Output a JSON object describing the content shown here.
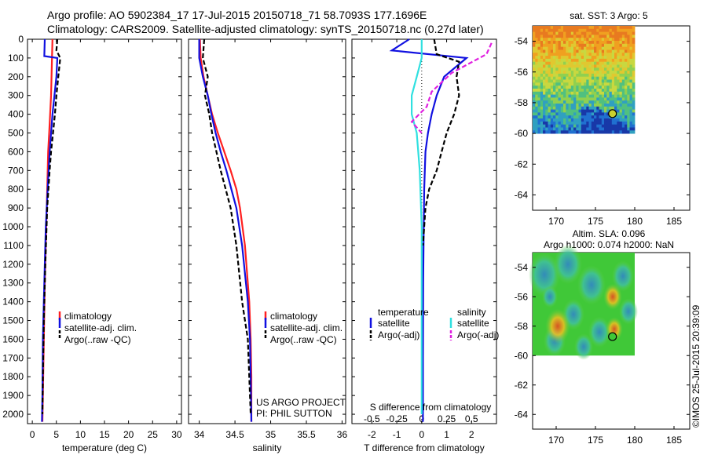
{
  "title": {
    "line1": "Argo profile: AO 5902384_17 17-Jul-2015 20150718_71 58.7093S 177.1696E",
    "line2": "Climatology: CARS2009. Satellite-adjusted climatology: synTS_20150718.nc (0.27d later)"
  },
  "colors": {
    "climatology": "#ff2020",
    "satellite": "#1010e0",
    "argo": "#000000",
    "s_satellite": "#30e0e0",
    "s_argo": "#e020e0"
  },
  "chart_data": [
    {
      "type": "line",
      "panel": "temperature",
      "xlabel": "temperature (deg C)",
      "ylabel": "",
      "xlim": [
        -1,
        31
      ],
      "ylim": [
        2050,
        0
      ],
      "y_inverted": true,
      "xticks": [
        0,
        5,
        10,
        15,
        20,
        25,
        30
      ],
      "yticks": [
        0,
        100,
        200,
        300,
        400,
        500,
        600,
        700,
        800,
        900,
        1000,
        1100,
        1200,
        1300,
        1400,
        1500,
        1600,
        1700,
        1800,
        1900,
        2000
      ],
      "legend": [
        "climatology",
        "satellite-adj. clim.",
        "Argo(..raw -QC)"
      ],
      "series": [
        {
          "name": "climatology",
          "style": "solid",
          "color": "#ff2020",
          "x": [
            4.2,
            4.1,
            4.0,
            3.9,
            3.7,
            3.5,
            3.3,
            3.1,
            2.9,
            2.6,
            2.4,
            2.2,
            2.1
          ],
          "y": [
            0,
            100,
            200,
            300,
            400,
            500,
            600,
            800,
            1000,
            1300,
            1600,
            1900,
            2040
          ]
        },
        {
          "name": "satellite-adj. clim.",
          "style": "solid",
          "color": "#1010e0",
          "x": [
            2.6,
            2.5,
            5.2,
            5.0,
            4.6,
            4.2,
            3.9,
            3.6,
            3.2,
            2.8,
            2.5,
            2.2,
            2.1,
            2.0
          ],
          "y": [
            0,
            90,
            100,
            200,
            300,
            400,
            500,
            600,
            800,
            1000,
            1300,
            1600,
            1900,
            2040
          ]
        },
        {
          "name": "Argo(..raw -QC)",
          "style": "dashed",
          "color": "#000000",
          "x": [
            5.2,
            5.0,
            5.8,
            5.4,
            5.0,
            4.7,
            4.3,
            3.9,
            3.6,
            3.1,
            2.7,
            2.4,
            2.2,
            2.1
          ],
          "y": [
            0,
            60,
            100,
            200,
            300,
            400,
            500,
            600,
            700,
            900,
            1200,
            1500,
            1800,
            2000
          ]
        }
      ]
    },
    {
      "type": "line",
      "panel": "salinity",
      "xlabel": "salinity",
      "xlim": [
        33.85,
        36.05
      ],
      "ylim": [
        2050,
        0
      ],
      "y_inverted": true,
      "xticks": [
        34,
        34.5,
        35,
        35.5,
        36
      ],
      "legend": [
        "climatology",
        "satellite-adj. clim.",
        "Argo(..raw -QC)"
      ],
      "annotation": [
        "US ARGO PROJECT",
        "PI: PHIL SUTTON"
      ],
      "series": [
        {
          "name": "climatology",
          "style": "solid",
          "color": "#ff2020",
          "x": [
            34.01,
            34.02,
            34.06,
            34.12,
            34.18,
            34.26,
            34.35,
            34.44,
            34.52,
            34.57,
            34.64,
            34.7,
            34.72,
            34.73,
            34.73
          ],
          "y": [
            0,
            100,
            200,
            300,
            400,
            500,
            600,
            700,
            800,
            900,
            1100,
            1400,
            1600,
            1800,
            2040
          ]
        },
        {
          "name": "satellite-adj. clim.",
          "style": "solid",
          "color": "#1010e0",
          "x": [
            34.0,
            34.0,
            34.05,
            34.12,
            34.17,
            34.23,
            34.3,
            34.38,
            34.45,
            34.52,
            34.6,
            34.68,
            34.71,
            34.72,
            34.73
          ],
          "y": [
            0,
            100,
            200,
            300,
            400,
            500,
            600,
            700,
            800,
            900,
            1100,
            1400,
            1600,
            1800,
            2040
          ]
        },
        {
          "name": "Argo(..raw -QC)",
          "style": "dashed",
          "color": "#000000",
          "x": [
            34.07,
            34.05,
            34.12,
            34.08,
            34.14,
            34.18,
            34.24,
            34.3,
            34.37,
            34.44,
            34.52,
            34.6,
            34.68,
            34.7,
            34.72
          ],
          "y": [
            0,
            100,
            200,
            300,
            400,
            500,
            600,
            700,
            800,
            900,
            1100,
            1400,
            1600,
            1800,
            2000
          ]
        }
      ]
    },
    {
      "type": "line",
      "panel": "difference",
      "xlabel": "T difference from climatology",
      "xlabel2": "S difference from climatology",
      "xlim": [
        -2.8,
        3.0
      ],
      "ylim": [
        2050,
        0
      ],
      "y_inverted": true,
      "xticks": [
        -2,
        -1,
        0,
        1,
        2
      ],
      "xticks_S": [
        -0.5,
        -0.25,
        0,
        0.25,
        0.5
      ],
      "legend_headers": [
        "temperature",
        "salinity"
      ],
      "legend": [
        "satellite",
        "Argo(-adj)",
        "satellite",
        "Argo(-adj)"
      ],
      "series": [
        {
          "name": "satellite",
          "quantity": "temperature",
          "style": "solid",
          "color": "#1010e0",
          "x": [
            -0.5,
            -1.2,
            1.8,
            0.9,
            0.6,
            0.4,
            0.25,
            0.15,
            0.1,
            0.08,
            0.06,
            0.05,
            0.05
          ],
          "y": [
            0,
            60,
            100,
            200,
            300,
            400,
            500,
            600,
            800,
            1000,
            1300,
            1700,
            2040
          ]
        },
        {
          "name": "Argo(-adj)",
          "quantity": "temperature",
          "style": "dashed",
          "color": "#000000",
          "x": [
            0.5,
            0.6,
            1.5,
            1.4,
            1.5,
            1.3,
            1.0,
            0.8,
            0.6,
            0.3,
            0.15,
            0.1,
            0.05
          ],
          "y": [
            0,
            80,
            120,
            200,
            300,
            400,
            500,
            600,
            700,
            800,
            900,
            1000,
            1100
          ]
        },
        {
          "name": "satellite",
          "quantity": "salinity",
          "style": "solid",
          "color": "#30e0e0",
          "x": [
            0.0,
            0.0,
            -0.05,
            -0.1,
            -0.1,
            -0.05,
            -0.02,
            0.0,
            0.0,
            0.0,
            0.0
          ],
          "y": [
            0,
            100,
            200,
            300,
            400,
            500,
            700,
            1000,
            1300,
            1700,
            2000
          ]
        },
        {
          "name": "Argo(-adj)",
          "quantity": "salinity",
          "style": "dashed",
          "color": "#e020e0",
          "x": [
            0.7,
            0.65,
            0.3,
            0.1,
            0.05,
            -0.1,
            0.0
          ],
          "y": [
            20,
            80,
            180,
            280,
            360,
            440,
            500
          ]
        }
      ]
    },
    {
      "type": "heatmap",
      "panel": "map1",
      "title": "sat. SST: 3 Argo: 5",
      "xlim": [
        167,
        187
      ],
      "ylim": [
        -65,
        -53
      ],
      "xticks": [
        170,
        175,
        180,
        185
      ],
      "yticks": [
        -54,
        -56,
        -58,
        -60,
        -62,
        -64
      ],
      "argo_marker": {
        "lon": 177.17,
        "lat": -58.71
      }
    },
    {
      "type": "heatmap",
      "panel": "map2",
      "title": "Altim. SLA: 0.096",
      "subtitle": "Argo h1000: 0.074 h2000: NaN",
      "xlim": [
        167,
        187
      ],
      "ylim": [
        -65,
        -53
      ],
      "xticks": [
        170,
        175,
        180,
        185
      ],
      "yticks": [
        -54,
        -56,
        -58,
        -60,
        -62,
        -64
      ],
      "argo_marker": {
        "lon": 177.17,
        "lat": -58.71
      }
    }
  ],
  "footer": "©IMOS 25-Jul-2015 20:39:09"
}
